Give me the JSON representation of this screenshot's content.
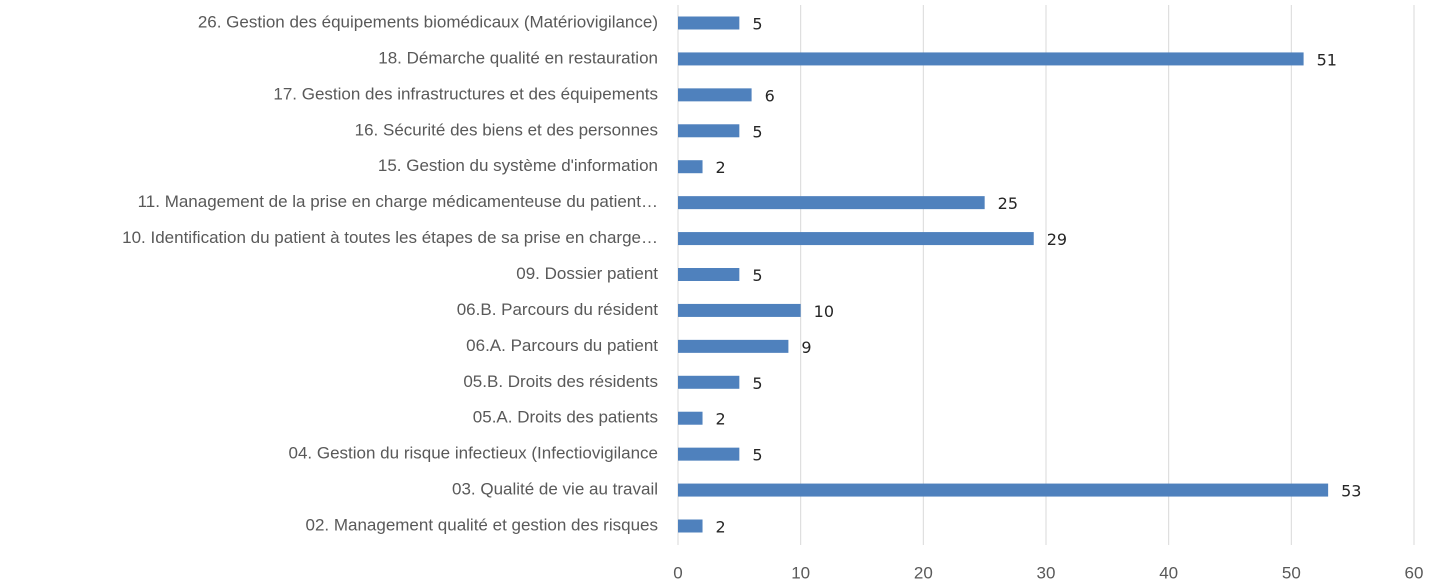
{
  "chart_data": {
    "type": "bar",
    "orientation": "horizontal",
    "categories": [
      "26. Gestion des équipements biomédicaux (Matériovigilance)",
      "18. Démarche qualité en restauration",
      "17. Gestion des infrastructures et des équipements",
      "16. Sécurité des biens et des personnes",
      "15. Gestion du système d'information",
      "11. Management de la prise en charge médicamenteuse du patient…",
      "10. Identification du patient à toutes les étapes de sa prise en charge…",
      "09. Dossier patient",
      "06.B. Parcours du résident",
      "06.A. Parcours du patient",
      "05.B. Droits des résidents",
      "05.A. Droits des patients",
      "04. Gestion du risque infectieux (Infectiovigilance",
      "03. Qualité de vie au travail",
      "02. Management qualité et gestion des risques"
    ],
    "values": [
      5,
      51,
      6,
      5,
      2,
      25,
      29,
      5,
      10,
      9,
      5,
      2,
      5,
      53,
      2
    ],
    "color": "#4f81bd",
    "xlim": [
      0,
      60
    ],
    "xticks": [
      0,
      10,
      20,
      30,
      40,
      50,
      60
    ],
    "grid": true
  }
}
